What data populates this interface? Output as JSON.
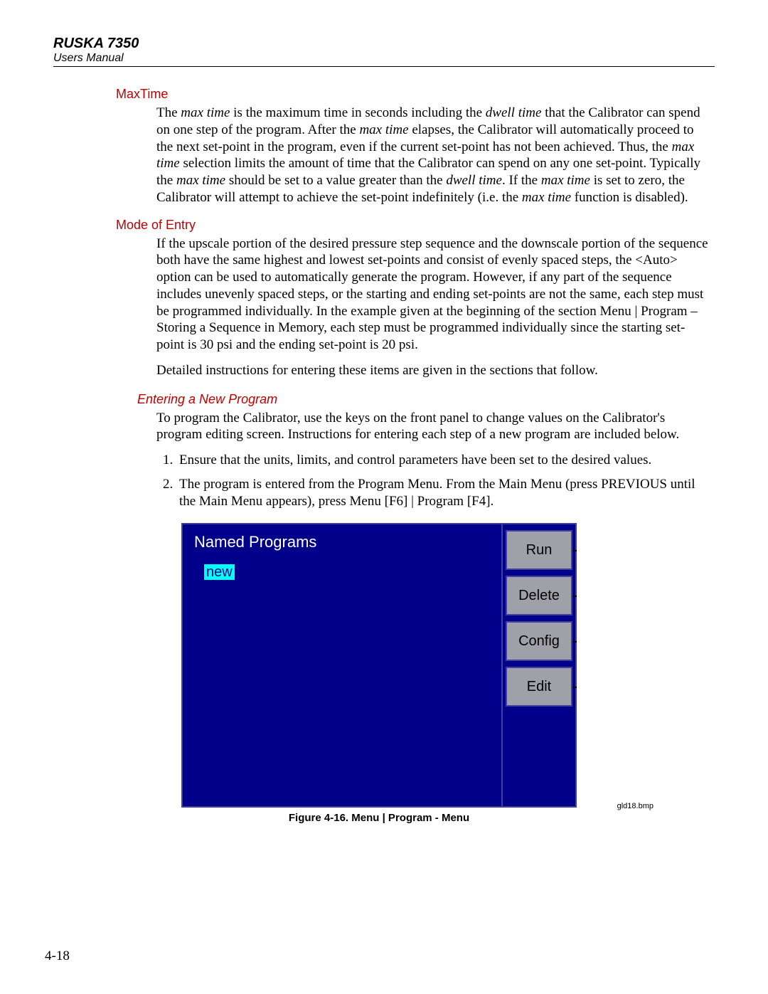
{
  "header": {
    "product": "RUSKA 7350",
    "subtitle": "Users Manual"
  },
  "sections": {
    "maxtime_title": "MaxTime",
    "maxtime_p1a": "The ",
    "maxtime_p1b": "max time",
    "maxtime_p1c": " is the maximum time in seconds including the ",
    "maxtime_p1d": "dwell time",
    "maxtime_p1e": " that the Calibrator can spend on one step of the program. After the ",
    "maxtime_p1f": "max time",
    "maxtime_p1g": " elapses, the Calibrator will automatically proceed to the next set-point in the program, even if the current set-point has not been achieved. Thus, the ",
    "maxtime_p1h": "max time",
    "maxtime_p1i": " selection limits the amount of time that the Calibrator can spend on any one set-point. Typically the ",
    "maxtime_p1j": "max time",
    "maxtime_p1k": " should be set to a value greater than the ",
    "maxtime_p1l": "dwell time",
    "maxtime_p1m": ". If the ",
    "maxtime_p1n": "max time",
    "maxtime_p1o": " is set to zero, the Calibrator will attempt to achieve the set-point indefinitely (i.e. the ",
    "maxtime_p1p": "max time",
    "maxtime_p1q": " function is disabled).",
    "mode_title": "Mode of Entry",
    "mode_body": "If the upscale portion of the desired pressure step sequence and the downscale portion of the sequence both have the same highest and lowest set-points and consist of evenly spaced steps, the <Auto> option can be used to automatically generate the program. However, if any part of the sequence includes unevenly spaced steps, or the starting and ending set-points are not the same, each step must be programmed individually. In the example given at the beginning of the section Menu | Program – Storing a Sequence in Memory, each step must be programmed individually since the starting set-point is 30 psi and the ending set-point is 20 psi.",
    "mode_body2": "Detailed instructions for entering these items are given in the sections that follow.",
    "enter_title": "Entering a New Program",
    "enter_body": "To program the Calibrator, use the keys on the front panel to change values on the Calibrator's program editing screen. Instructions for entering each step of a new program are included below.",
    "enter_step1": "Ensure that the units, limits, and control parameters have been set to the desired values.",
    "enter_step2": "The program is entered from the Program Menu. From the Main Menu (press PREVIOUS until the Main Menu appears), press Menu [F6] | Program [F4]."
  },
  "screenshot": {
    "title": "Named Programs",
    "selected_item": "new",
    "buttons": [
      "Run",
      "Delete",
      "Config",
      "Edit"
    ],
    "bg_color": "#00008b",
    "highlight_bg": "#00ffff",
    "button_bg": "#a0a0a8",
    "caption": "Figure 4-16. Menu | Program - Menu",
    "bmp": "gld18.bmp"
  },
  "page_number": "4-18"
}
